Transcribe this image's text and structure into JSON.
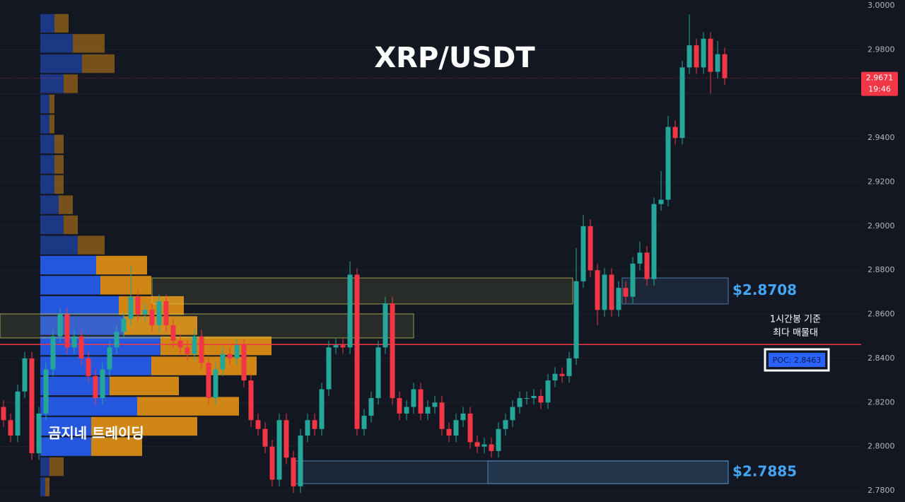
{
  "chart_data": {
    "type": "candlestick",
    "title": "XRP/USDT",
    "watermark": "곰지네 트레이딩",
    "ylim": [
      2.77487,
      3.00257
    ],
    "yticks": [
      {
        "value": 2.78,
        "label": "2.7800"
      },
      {
        "value": 2.8,
        "label": "2.8000"
      },
      {
        "value": 2.82,
        "label": "2.8200"
      },
      {
        "value": 2.84,
        "label": "2.8400"
      },
      {
        "value": 2.86,
        "label": "2.8600"
      },
      {
        "value": 2.88,
        "label": "2.8800"
      },
      {
        "value": 2.9,
        "label": "2.9000"
      },
      {
        "value": 2.92,
        "label": "2.9200"
      },
      {
        "value": 2.94,
        "label": "2.9400"
      },
      {
        "value": 2.96,
        "label": "2.9600"
      },
      {
        "value": 2.98,
        "label": "2.9800"
      },
      {
        "value": 3,
        "label": "3.0000"
      }
    ],
    "grid": true,
    "up_color": "#26a69a",
    "down_color": "#f23645",
    "ohlc": [
      [
        2.818,
        2.821,
        2.809,
        2.812
      ],
      [
        2.812,
        2.815,
        2.802,
        2.805
      ],
      [
        2.805,
        2.828,
        2.802,
        2.825
      ],
      [
        2.825,
        2.843,
        2.822,
        2.84
      ],
      [
        2.84,
        2.843,
        2.794,
        2.797
      ],
      [
        2.797,
        2.818,
        2.794,
        2.815
      ],
      [
        2.815,
        2.838,
        2.812,
        2.835
      ],
      [
        2.835,
        2.853,
        2.832,
        2.85
      ],
      [
        2.85,
        2.863,
        2.847,
        2.86
      ],
      [
        2.86,
        2.863,
        2.842,
        2.845
      ],
      [
        2.845,
        2.853,
        2.842,
        2.85
      ],
      [
        2.85,
        2.853,
        2.837,
        2.84
      ],
      [
        2.84,
        2.843,
        2.829,
        2.832
      ],
      [
        2.832,
        2.835,
        2.819,
        2.822
      ],
      [
        2.822,
        2.838,
        2.819,
        2.835
      ],
      [
        2.835,
        2.848,
        2.832,
        2.845
      ],
      [
        2.845,
        2.855,
        2.842,
        2.852
      ],
      [
        2.852,
        2.861,
        2.849,
        2.858
      ],
      [
        2.858,
        2.882,
        2.855,
        2.868
      ],
      [
        2.868,
        2.871,
        2.857,
        2.86
      ],
      [
        2.86,
        2.865,
        2.857,
        2.862
      ],
      [
        2.862,
        2.865,
        2.852,
        2.855
      ],
      [
        2.855,
        2.869,
        2.852,
        2.866
      ],
      [
        2.866,
        2.869,
        2.852,
        2.855
      ],
      [
        2.855,
        2.858,
        2.845,
        2.848
      ],
      [
        2.848,
        2.851,
        2.842,
        2.845
      ],
      [
        2.845,
        2.848,
        2.839,
        2.842
      ],
      [
        2.842,
        2.853,
        2.839,
        2.85
      ],
      [
        2.85,
        2.853,
        2.835,
        2.838
      ],
      [
        2.838,
        2.841,
        2.819,
        2.822
      ],
      [
        2.822,
        2.838,
        2.819,
        2.835
      ],
      [
        2.835,
        2.845,
        2.832,
        2.842
      ],
      [
        2.842,
        2.845,
        2.837,
        2.84
      ],
      [
        2.84,
        2.849,
        2.837,
        2.846
      ],
      [
        2.846,
        2.849,
        2.827,
        2.83
      ],
      [
        2.83,
        2.833,
        2.809,
        2.812
      ],
      [
        2.812,
        2.815,
        2.805,
        2.808
      ],
      [
        2.808,
        2.811,
        2.797,
        2.8
      ],
      [
        2.8,
        2.803,
        2.782,
        2.785
      ],
      [
        2.785,
        2.815,
        2.782,
        2.812
      ],
      [
        2.812,
        2.815,
        2.792,
        2.795
      ],
      [
        2.795,
        2.798,
        2.779,
        2.782
      ],
      [
        2.782,
        2.808,
        2.779,
        2.805
      ],
      [
        2.805,
        2.815,
        2.802,
        2.812
      ],
      [
        2.812,
        2.815,
        2.805,
        2.808
      ],
      [
        2.808,
        2.829,
        2.805,
        2.826
      ],
      [
        2.826,
        2.848,
        2.823,
        2.845
      ],
      [
        2.845,
        2.849,
        2.842,
        2.846
      ],
      [
        2.846,
        2.849,
        2.842,
        2.845
      ],
      [
        2.845,
        2.884,
        2.842,
        2.878
      ],
      [
        2.878,
        2.881,
        2.805,
        2.808
      ],
      [
        2.808,
        2.817,
        2.805,
        2.814
      ],
      [
        2.814,
        2.825,
        2.811,
        2.822
      ],
      [
        2.822,
        2.848,
        2.819,
        2.845
      ],
      [
        2.845,
        2.868,
        2.842,
        2.865
      ],
      [
        2.865,
        2.868,
        2.819,
        2.822
      ],
      [
        2.822,
        2.825,
        2.812,
        2.815
      ],
      [
        2.815,
        2.821,
        2.812,
        2.818
      ],
      [
        2.818,
        2.829,
        2.815,
        2.826
      ],
      [
        2.826,
        2.829,
        2.812,
        2.815
      ],
      [
        2.815,
        2.821,
        2.812,
        2.818
      ],
      [
        2.818,
        2.823,
        2.815,
        2.82
      ],
      [
        2.82,
        2.823,
        2.805,
        2.808
      ],
      [
        2.808,
        2.811,
        2.802,
        2.805
      ],
      [
        2.805,
        2.815,
        2.802,
        2.812
      ],
      [
        2.812,
        2.818,
        2.809,
        2.815
      ],
      [
        2.815,
        2.818,
        2.799,
        2.802
      ],
      [
        2.802,
        2.805,
        2.797,
        2.8
      ],
      [
        2.8,
        2.804,
        2.797,
        2.801
      ],
      [
        2.801,
        2.804,
        2.795,
        2.798
      ],
      [
        2.798,
        2.811,
        2.795,
        2.808
      ],
      [
        2.808,
        2.815,
        2.805,
        2.812
      ],
      [
        2.812,
        2.821,
        2.809,
        2.818
      ],
      [
        2.818,
        2.825,
        2.815,
        2.822
      ],
      [
        2.822,
        2.825,
        2.819,
        2.822
      ],
      [
        2.822,
        2.826,
        2.819,
        2.823
      ],
      [
        2.823,
        2.826,
        2.817,
        2.82
      ],
      [
        2.82,
        2.833,
        2.817,
        2.83
      ],
      [
        2.83,
        2.836,
        2.827,
        2.833
      ],
      [
        2.833,
        2.836,
        2.829,
        2.832
      ],
      [
        2.832,
        2.843,
        2.829,
        2.84
      ],
      [
        2.84,
        2.89,
        2.837,
        2.875
      ],
      [
        2.875,
        2.905,
        2.872,
        2.9
      ],
      [
        2.9,
        2.903,
        2.877,
        2.88
      ],
      [
        2.88,
        2.883,
        2.855,
        2.862
      ],
      [
        2.862,
        2.881,
        2.859,
        2.878
      ],
      [
        2.878,
        2.881,
        2.859,
        2.862
      ],
      [
        2.862,
        2.875,
        2.859,
        2.872
      ],
      [
        2.872,
        2.875,
        2.865,
        2.868
      ],
      [
        2.868,
        2.886,
        2.865,
        2.883
      ],
      [
        2.883,
        2.893,
        2.88,
        2.888
      ],
      [
        2.888,
        2.891,
        2.873,
        2.876
      ],
      [
        2.876,
        2.913,
        2.873,
        2.91
      ],
      [
        2.91,
        2.925,
        2.907,
        2.912
      ],
      [
        2.912,
        2.95,
        2.909,
        2.945
      ],
      [
        2.945,
        2.948,
        2.937,
        2.94
      ],
      [
        2.94,
        2.975,
        2.937,
        2.972
      ],
      [
        2.972,
        2.996,
        2.969,
        2.982
      ],
      [
        2.982,
        2.985,
        2.969,
        2.972
      ],
      [
        2.972,
        2.988,
        2.969,
        2.985
      ],
      [
        2.985,
        2.988,
        2.96,
        2.97
      ],
      [
        2.97,
        2.984,
        2.967,
        2.978
      ],
      [
        2.978,
        2.981,
        2.964,
        2.9671
      ]
    ],
    "last_price": 2.9671,
    "last_time": "19:46",
    "poc": {
      "price": 2.8463,
      "label": "POC: 2.8463",
      "note": [
        "1시간봉 기준",
        "최다 매물대"
      ],
      "color": "#f23645"
    },
    "zones": [
      {
        "from": -0.5,
        "to": 58,
        "top": 2.8602,
        "bottom": 2.8493,
        "color": "#c9c25a"
      },
      {
        "from": 21,
        "to": 80.5,
        "top": 2.8765,
        "bottom": 2.8647,
        "color": "#c9c25a"
      },
      {
        "from": 87.5,
        "to": 102.5,
        "top": 2.8765,
        "bottom": 2.8647,
        "color": "#5b9bd5",
        "label": "$2.8708"
      },
      {
        "from": 41,
        "to": 102.5,
        "top": 2.7935,
        "bottom": 2.7832,
        "color": "#5b9bd5",
        "label": "$2.7885"
      },
      {
        "from": 68.5,
        "to": 102.5,
        "top": 2.7935,
        "bottom": 2.7832,
        "color": "#5b9bd5"
      }
    ],
    "volume_profile": {
      "price": [
        2.992,
        2.9829,
        2.9737,
        2.9646,
        2.9554,
        2.9463,
        2.9372,
        2.928,
        2.9189,
        2.9097,
        2.9006,
        2.8914,
        2.8823,
        2.8732,
        2.864,
        2.8549,
        2.8457,
        2.8366,
        2.8275,
        2.8183,
        2.8092,
        2.8,
        2.7909,
        2.7817
      ],
      "buy": [
        20,
        46,
        59,
        33,
        13,
        13,
        20,
        20,
        20,
        26,
        33,
        53,
        79,
        85,
        111,
        118,
        170,
        157,
        98,
        137,
        72,
        72,
        13,
        7
      ],
      "sell": [
        20,
        45,
        46,
        20,
        7,
        7,
        13,
        13,
        13,
        20,
        20,
        38,
        72,
        72,
        92,
        104,
        157,
        149,
        98,
        144,
        150,
        72,
        20,
        6
      ],
      "buy_color": "#2962ff",
      "sell_color": "#f29a12",
      "value_area": [
        2.7955,
        2.8869
      ]
    }
  }
}
